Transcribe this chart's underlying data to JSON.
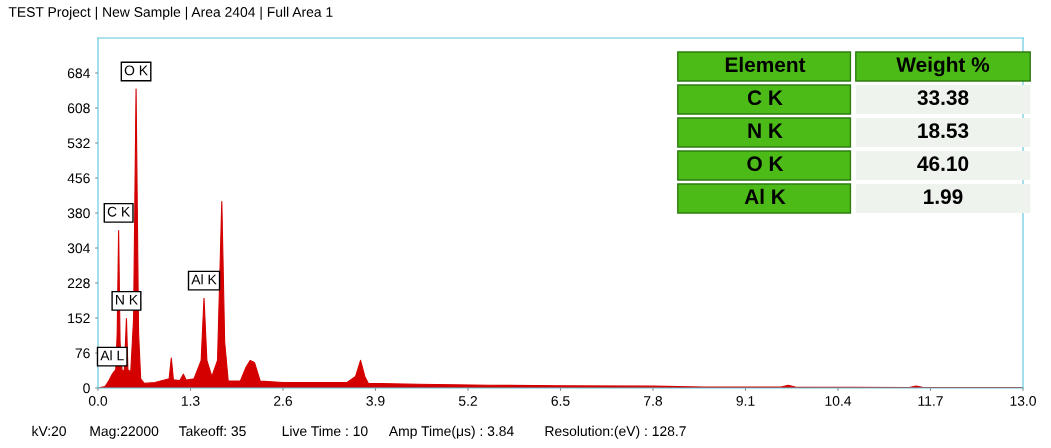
{
  "chart_data": [
    {
      "type": "area",
      "title": "TEST Project | New Sample | Area 2404 | Full Area 1",
      "x": [
        0.0,
        0.1,
        0.15,
        0.2,
        0.25,
        0.27,
        0.29,
        0.31,
        0.34,
        0.37,
        0.4,
        0.42,
        0.46,
        0.5,
        0.535,
        0.57,
        0.6,
        0.65,
        0.8,
        1.0,
        1.03,
        1.06,
        1.15,
        1.2,
        1.24,
        1.35,
        1.45,
        1.49,
        1.53,
        1.6,
        1.68,
        1.74,
        1.78,
        1.83,
        2.0,
        2.08,
        2.14,
        2.2,
        2.28,
        2.6,
        3.0,
        3.5,
        3.62,
        3.69,
        3.75,
        3.8,
        4.5,
        5.5,
        6.5,
        7.8,
        8.5,
        9.6,
        9.7,
        9.8,
        11.4,
        11.5,
        11.6,
        13.0
      ],
      "values": [
        0,
        3,
        15,
        30,
        40,
        120,
        342,
        100,
        35,
        40,
        151,
        40,
        35,
        150,
        649,
        120,
        20,
        10,
        12,
        20,
        65,
        18,
        16,
        30,
        17,
        20,
        60,
        195,
        60,
        25,
        60,
        405,
        100,
        15,
        15,
        45,
        60,
        55,
        15,
        12,
        12,
        12,
        25,
        60,
        25,
        10,
        8,
        6,
        5,
        4,
        2,
        2,
        6,
        2,
        1,
        4,
        1,
        1
      ],
      "color": "#d40000",
      "xlim": [
        0,
        13.0
      ],
      "ylim": [
        0,
        760
      ],
      "xticks": [
        {
          "value": 0.0,
          "label": "0.0"
        },
        1.3,
        2.6,
        3.9,
        5.2,
        6.5,
        7.8,
        9.1,
        10.4,
        11.7,
        {
          "value": 13.0,
          "label": "13.0"
        }
      ],
      "yticks": [
        0,
        76,
        152,
        228,
        304,
        380,
        456,
        532,
        608,
        684
      ],
      "grid": false,
      "legend": false,
      "annotations": [
        {
          "text": "O K",
          "x": 0.535,
          "y": 649
        },
        {
          "text": "C K",
          "x": 0.29,
          "y": 342
        },
        {
          "text": "N K",
          "x": 0.4,
          "y": 151
        },
        {
          "text": "Al K",
          "x": 1.49,
          "y": 195
        },
        {
          "text": "Al L",
          "x": 0.2,
          "y": 30
        },
        "kV:20",
        "Mag:22000",
        "Takeoff: 35",
        "Live Time : 10",
        "Amp Time(μs) : 3.84",
        "Resolution:(eV) : 128.7"
      ]
    },
    {
      "type": "other",
      "annotations": [
        "Element",
        "Weight %",
        "C K",
        "33.38",
        "N K",
        "18.53",
        "O K",
        "46.10",
        "Al K",
        "1.99"
      ]
    }
  ]
}
